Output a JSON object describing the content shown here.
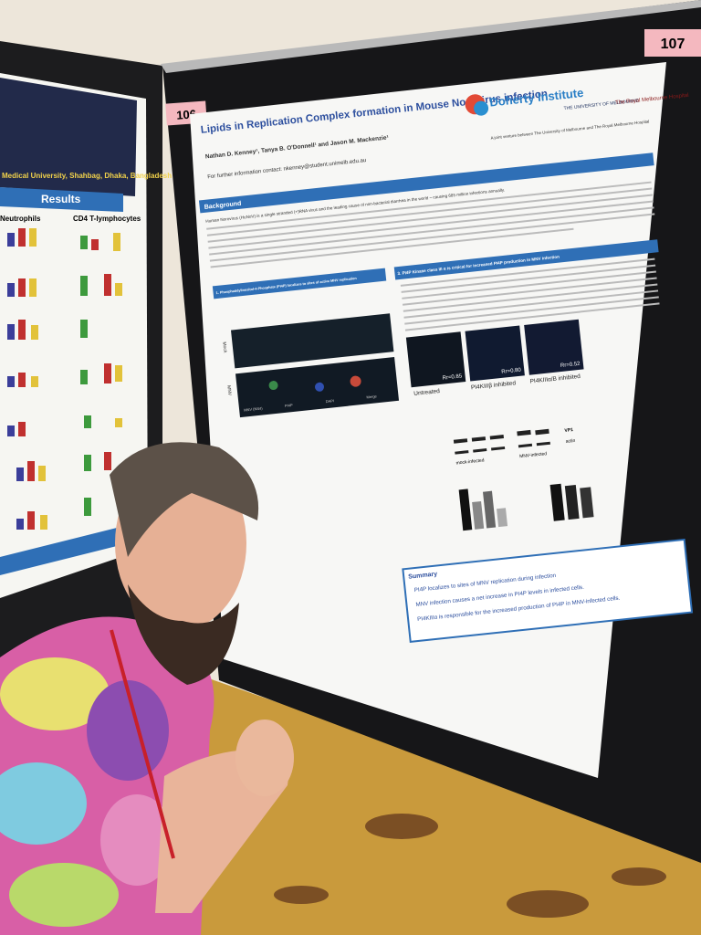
{
  "boards": {
    "left_number": "106",
    "right_number": "107"
  },
  "left_poster": {
    "affiliation": "Medical University, Shahbag, Dhaka, Bangladesh",
    "section": "Results",
    "panels": [
      "Neutrophils",
      "CD4 T-lymphocytes"
    ]
  },
  "poster": {
    "title": "Lipids in Replication Complex formation in Mouse Norovirus infection",
    "authors": "Nathan D. Kenney¹, Tanya B. O'Donnell¹ and Jason M. Mackenzie¹",
    "contact": "For further information contact: nkenney@student.unimelb.edu.au",
    "logos": [
      "Doherty Institute",
      "THE UNIVERSITY OF MELBOURNE",
      "The Royal Melbourne Hospital"
    ],
    "joint_venture": "A joint venture between The University of Melbourne and The Royal Melbourne Hospital",
    "background": {
      "heading": "Background",
      "text": "Human Norovirus (HuNoV) is a single stranded (+)RNA virus and the leading cause of non-bacterial diarrhea in the world – causing 685 million infections annually."
    },
    "section1": {
      "heading": "1. Phosphatidylinositol-4-Phosphate (PI4P) localizes to sites of active MNV replication",
      "rows": [
        "Mock",
        "MNV"
      ],
      "channels": [
        "MNV (NS4)",
        "PI4P",
        "DAPI",
        "Merge"
      ]
    },
    "section3": {
      "heading": "3. PI4P Kinase class III α is critical for increased PI4P production in MNV infection",
      "images": [
        {
          "label": "Untreated",
          "rr": "Rr=0.85"
        },
        {
          "label": "PI4KIIIβ inhibited",
          "rr": "Rr=0.80"
        },
        {
          "label": "PI4KIIIα/B inhibited",
          "rr": "Rr=0.52"
        }
      ],
      "blot": [
        "VP1",
        "actin",
        "mock-infected",
        "MNV-infected"
      ]
    },
    "summary": {
      "heading": "Summary",
      "points": [
        "PI4P localizes to sites of MNV replication during infection",
        "MNV infection causes a net increase in PI4P levels in infected cells.",
        "PI4KIIIα is responsible for the increased production of PI4P in MNV-infected cells."
      ]
    }
  }
}
